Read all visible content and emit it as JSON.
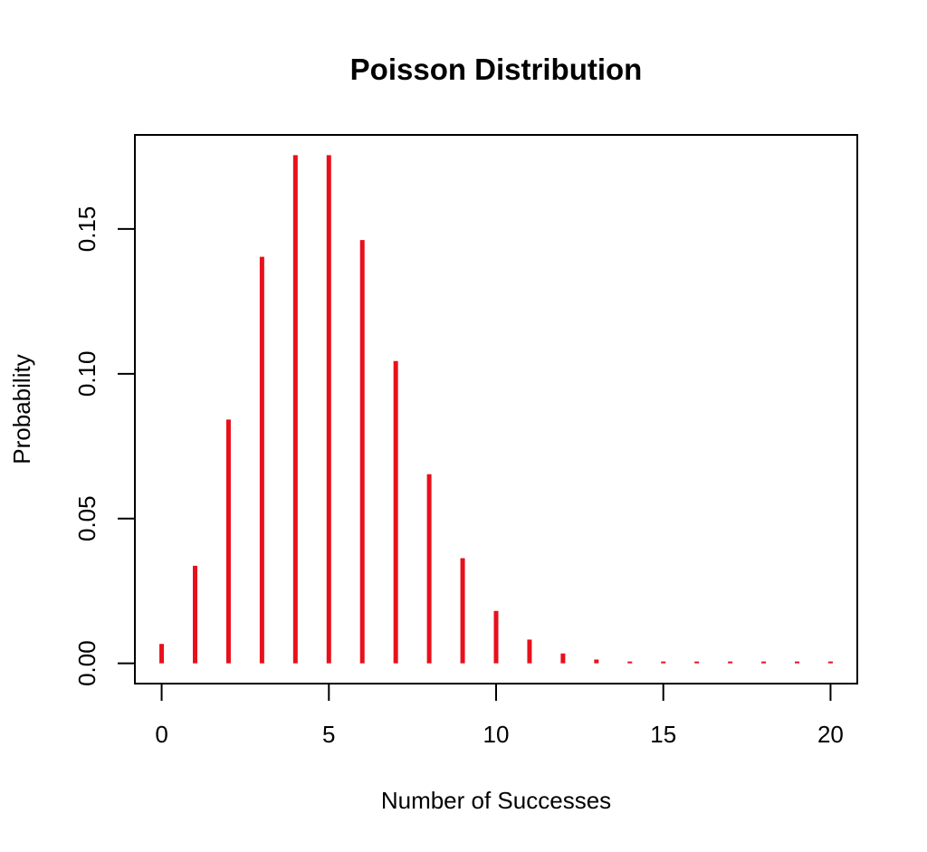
{
  "chart_data": {
    "type": "bar",
    "title": "Poisson Distribution",
    "xlabel": "Number of Successes",
    "ylabel": "Probability",
    "x": [
      0,
      1,
      2,
      3,
      4,
      5,
      6,
      7,
      8,
      9,
      10,
      11,
      12,
      13,
      14,
      15,
      16,
      17,
      18,
      19,
      20
    ],
    "values": [
      0.0067,
      0.0337,
      0.0842,
      0.1404,
      0.1755,
      0.1755,
      0.1462,
      0.1044,
      0.0653,
      0.0363,
      0.0181,
      0.0082,
      0.0034,
      0.0013,
      0.0005,
      0.0002,
      0.0001,
      0.0,
      0.0,
      0.0,
      0.0
    ],
    "xticks": [
      0,
      5,
      10,
      15,
      20
    ],
    "xtick_labels": [
      "0",
      "5",
      "10",
      "15",
      "20"
    ],
    "yticks": [
      0.0,
      0.05,
      0.1,
      0.15
    ],
    "ytick_labels": [
      "0.00",
      "0.05",
      "0.10",
      "0.15"
    ],
    "xlim": [
      -0.8,
      20.8
    ],
    "ylim": [
      -0.007,
      0.1825
    ],
    "grid": false,
    "color": "#e8101c"
  }
}
